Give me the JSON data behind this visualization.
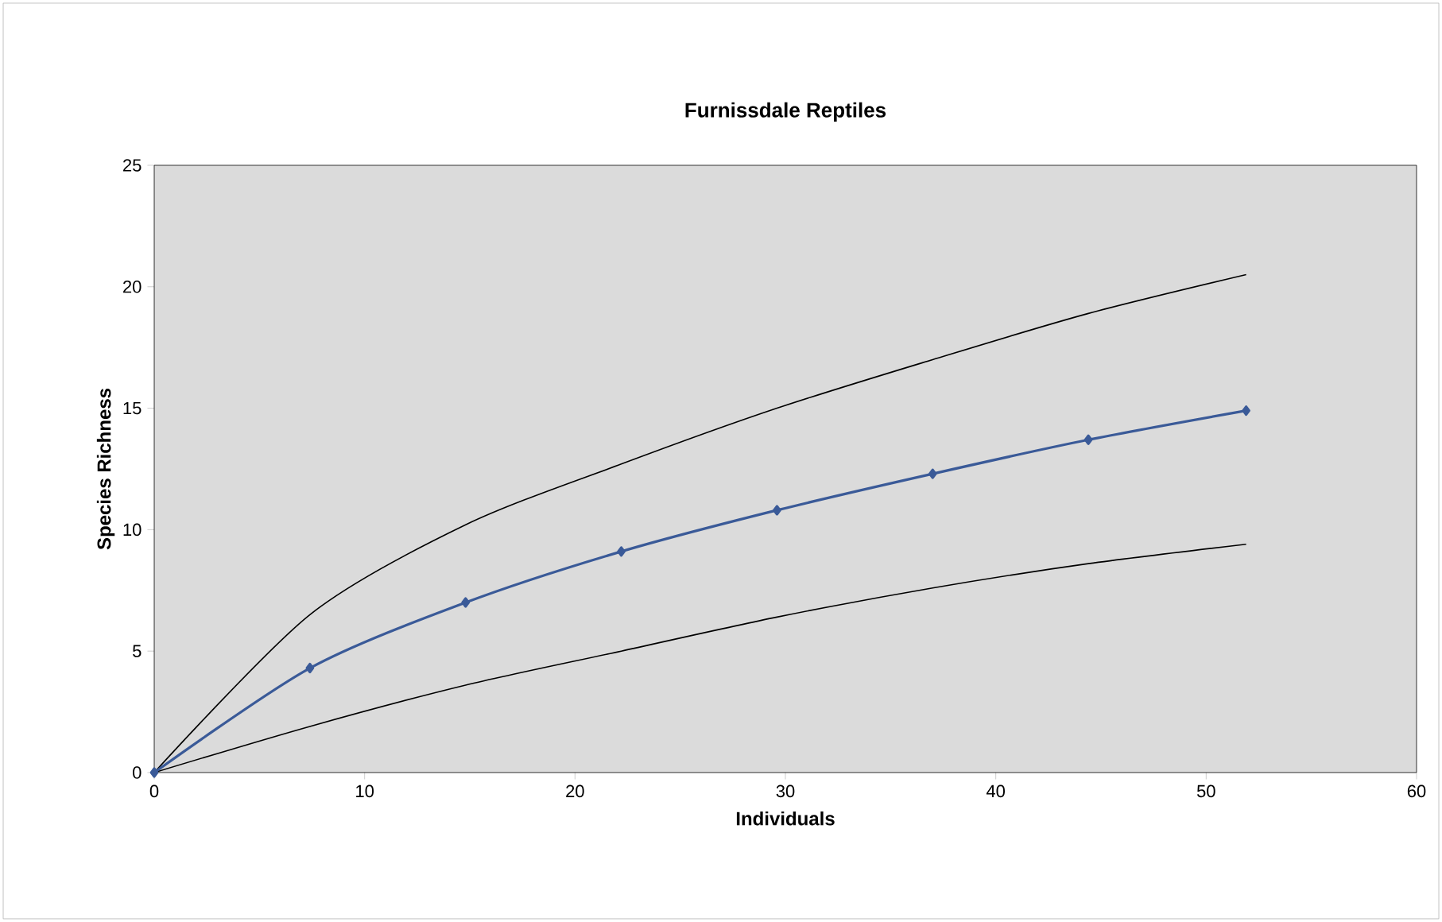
{
  "chart_data": {
    "type": "line",
    "title": "Furnissdale Reptiles",
    "xlabel": "Individuals",
    "ylabel": "Species Richness",
    "x": [
      0,
      7.4,
      14.8,
      22.2,
      29.6,
      37,
      44.4,
      51.9
    ],
    "series": [
      {
        "color": "#000000",
        "values": [
          0,
          6.5,
          10.2,
          12.7,
          15.0,
          17.0,
          18.9,
          20.5
        ],
        "marker": "none"
      },
      {
        "color": "#000000",
        "values": [
          0,
          1.9,
          3.6,
          5.0,
          6.4,
          7.6,
          8.6,
          9.4
        ],
        "marker": "none"
      },
      {
        "color": "#3a5a98",
        "values": [
          0,
          4.3,
          7.0,
          9.1,
          10.8,
          12.3,
          13.7,
          14.9
        ],
        "marker": "diamond"
      }
    ],
    "xlim": [
      0,
      60
    ],
    "ylim": [
      0,
      25
    ],
    "xticks": [
      0,
      10,
      20,
      30,
      40,
      50,
      60
    ],
    "yticks": [
      0,
      5,
      10,
      15,
      20,
      25
    ],
    "grid": false
  }
}
